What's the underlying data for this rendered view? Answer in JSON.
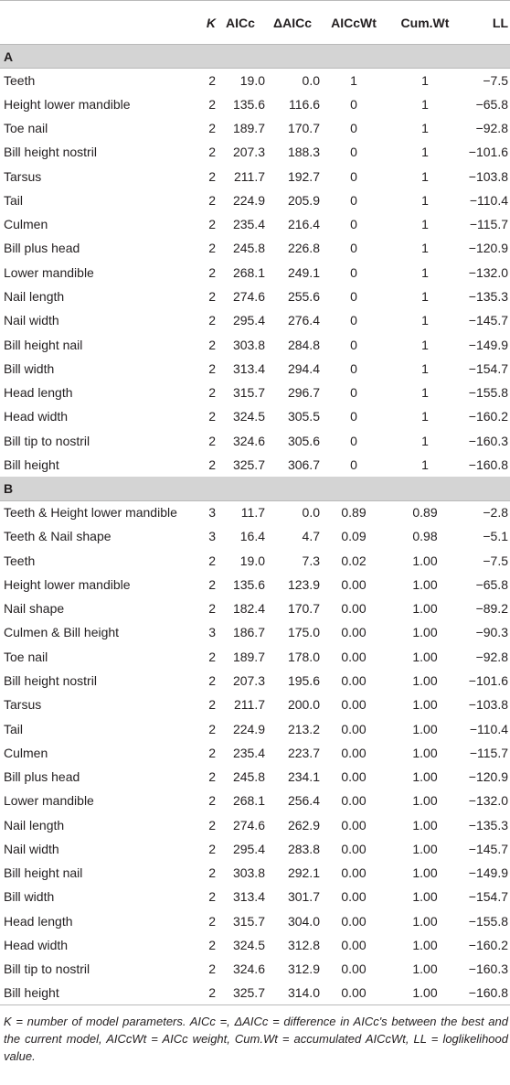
{
  "headers": {
    "model": "",
    "k": "K",
    "aicc": "AICc",
    "daicc": "ΔAICc",
    "aiccwt": "AICcWt",
    "cumwt": "Cum.Wt",
    "ll": "LL"
  },
  "sections": [
    {
      "label": "A",
      "rows": [
        [
          "Teeth",
          "2",
          "19.0",
          "0.0",
          "1",
          "1",
          "−7.5"
        ],
        [
          "Height lower mandible",
          "2",
          "135.6",
          "116.6",
          "0",
          "1",
          "−65.8"
        ],
        [
          "Toe nail",
          "2",
          "189.7",
          "170.7",
          "0",
          "1",
          "−92.8"
        ],
        [
          "Bill height nostril",
          "2",
          "207.3",
          "188.3",
          "0",
          "1",
          "−101.6"
        ],
        [
          "Tarsus",
          "2",
          "211.7",
          "192.7",
          "0",
          "1",
          "−103.8"
        ],
        [
          "Tail",
          "2",
          "224.9",
          "205.9",
          "0",
          "1",
          "−110.4"
        ],
        [
          "Culmen",
          "2",
          "235.4",
          "216.4",
          "0",
          "1",
          "−115.7"
        ],
        [
          "Bill plus head",
          "2",
          "245.8",
          "226.8",
          "0",
          "1",
          "−120.9"
        ],
        [
          "Lower mandible",
          "2",
          "268.1",
          "249.1",
          "0",
          "1",
          "−132.0"
        ],
        [
          "Nail length",
          "2",
          "274.6",
          "255.6",
          "0",
          "1",
          "−135.3"
        ],
        [
          "Nail width",
          "2",
          "295.4",
          "276.4",
          "0",
          "1",
          "−145.7"
        ],
        [
          "Bill height nail",
          "2",
          "303.8",
          "284.8",
          "0",
          "1",
          "−149.9"
        ],
        [
          "Bill width",
          "2",
          "313.4",
          "294.4",
          "0",
          "1",
          "−154.7"
        ],
        [
          "Head length",
          "2",
          "315.7",
          "296.7",
          "0",
          "1",
          "−155.8"
        ],
        [
          "Head width",
          "2",
          "324.5",
          "305.5",
          "0",
          "1",
          "−160.2"
        ],
        [
          "Bill tip to nostril",
          "2",
          "324.6",
          "305.6",
          "0",
          "1",
          "−160.3"
        ],
        [
          "Bill height",
          "2",
          "325.7",
          "306.7",
          "0",
          "1",
          "−160.8"
        ]
      ]
    },
    {
      "label": "B",
      "rows": [
        [
          "Teeth & Height lower mandible",
          "3",
          "11.7",
          "0.0",
          "0.89",
          "0.89",
          "−2.8"
        ],
        [
          "Teeth & Nail shape",
          "3",
          "16.4",
          "4.7",
          "0.09",
          "0.98",
          "−5.1"
        ],
        [
          "Teeth",
          "2",
          "19.0",
          "7.3",
          "0.02",
          "1.00",
          "−7.5"
        ],
        [
          "Height lower mandible",
          "2",
          "135.6",
          "123.9",
          "0.00",
          "1.00",
          "−65.8"
        ],
        [
          "Nail shape",
          "2",
          "182.4",
          "170.7",
          "0.00",
          "1.00",
          "−89.2"
        ],
        [
          "Culmen & Bill height",
          "3",
          "186.7",
          "175.0",
          "0.00",
          "1.00",
          "−90.3"
        ],
        [
          "Toe nail",
          "2",
          "189.7",
          "178.0",
          "0.00",
          "1.00",
          "−92.8"
        ],
        [
          "Bill height nostril",
          "2",
          "207.3",
          "195.6",
          "0.00",
          "1.00",
          "−101.6"
        ],
        [
          "Tarsus",
          "2",
          "211.7",
          "200.0",
          "0.00",
          "1.00",
          "−103.8"
        ],
        [
          "Tail",
          "2",
          "224.9",
          "213.2",
          "0.00",
          "1.00",
          "−110.4"
        ],
        [
          "Culmen",
          "2",
          "235.4",
          "223.7",
          "0.00",
          "1.00",
          "−115.7"
        ],
        [
          "Bill plus head",
          "2",
          "245.8",
          "234.1",
          "0.00",
          "1.00",
          "−120.9"
        ],
        [
          "Lower mandible",
          "2",
          "268.1",
          "256.4",
          "0.00",
          "1.00",
          "−132.0"
        ],
        [
          "Nail length",
          "2",
          "274.6",
          "262.9",
          "0.00",
          "1.00",
          "−135.3"
        ],
        [
          "Nail width",
          "2",
          "295.4",
          "283.8",
          "0.00",
          "1.00",
          "−145.7"
        ],
        [
          "Bill height nail",
          "2",
          "303.8",
          "292.1",
          "0.00",
          "1.00",
          "−149.9"
        ],
        [
          "Bill width",
          "2",
          "313.4",
          "301.7",
          "0.00",
          "1.00",
          "−154.7"
        ],
        [
          "Head length",
          "2",
          "315.7",
          "304.0",
          "0.00",
          "1.00",
          "−155.8"
        ],
        [
          "Head width",
          "2",
          "324.5",
          "312.8",
          "0.00",
          "1.00",
          "−160.2"
        ],
        [
          "Bill tip to nostril",
          "2",
          "324.6",
          "312.9",
          "0.00",
          "1.00",
          "−160.3"
        ],
        [
          "Bill height",
          "2",
          "325.7",
          "314.0",
          "0.00",
          "1.00",
          "−160.8"
        ]
      ]
    }
  ],
  "footnote": "K = number of model parameters. AICc =, ΔAICc = difference in AICc's between the best and the current model, AICcWt = AICc weight, Cum.Wt = accumulated AICcWt, LL = loglikelihood value."
}
